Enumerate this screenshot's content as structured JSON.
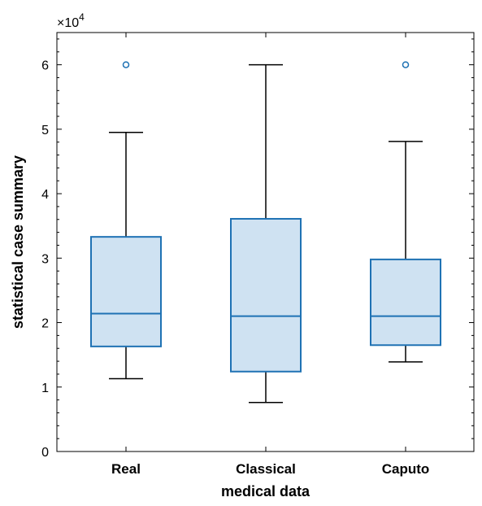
{
  "chart_data": {
    "type": "boxplot",
    "xlabel": "medical data",
    "ylabel": "statistical case summary",
    "y_exponent_label": "×10",
    "y_exponent_power": "4",
    "ylim": [
      0,
      65000
    ],
    "yticks": [
      0,
      10000,
      20000,
      30000,
      40000,
      50000,
      60000
    ],
    "ytick_labels": [
      "0",
      "1",
      "2",
      "3",
      "4",
      "5",
      "6"
    ],
    "categories": [
      "Real",
      "Classical",
      "Caputo"
    ],
    "boxes": [
      {
        "category": "Real",
        "whisker_low": 11300,
        "q1": 16300,
        "median": 21400,
        "q3": 33300,
        "whisker_high": 49500,
        "outliers": [
          60000
        ]
      },
      {
        "category": "Classical",
        "whisker_low": 7600,
        "q1": 12400,
        "median": 21000,
        "q3": 36100,
        "whisker_high": 60000,
        "outliers": []
      },
      {
        "category": "Caputo",
        "whisker_low": 13900,
        "q1": 16500,
        "median": 21000,
        "q3": 29800,
        "whisker_high": 48100,
        "outliers": [
          60000
        ]
      }
    ],
    "grid": false,
    "colors": {
      "box_fill": "#cfe2f2",
      "box_edge": "#1f72b4",
      "whisker": "#000000",
      "outlier": "#1f72b4"
    }
  }
}
